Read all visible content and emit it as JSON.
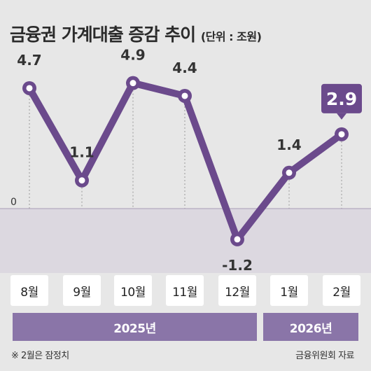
{
  "title": "금융권 가계대출 증감 추이",
  "unit": "(단위 : 조원)",
  "footnote": "※ 2월은 잠정치",
  "source": "금융위원회 자료",
  "colors": {
    "line": "#6b4a8c",
    "highlight": "#6b4a8c",
    "year_bar": "#8a75a8",
    "background": "#e7e7e7"
  },
  "chart_data": {
    "type": "line",
    "categories": [
      "8월",
      "9월",
      "10월",
      "11월",
      "12월",
      "1월",
      "2월"
    ],
    "values": [
      4.7,
      1.1,
      4.9,
      4.4,
      -1.2,
      1.4,
      2.9
    ],
    "value_labels": [
      "4.7",
      "1.1",
      "4.9",
      "4.4",
      "-1.2",
      "1.4",
      "2.9"
    ],
    "highlight_index": 6,
    "zero_label": "0",
    "year_groups": [
      {
        "label": "2025년",
        "months": 5
      },
      {
        "label": "2026년",
        "months": 2
      }
    ],
    "legend": "none",
    "grid": false
  }
}
